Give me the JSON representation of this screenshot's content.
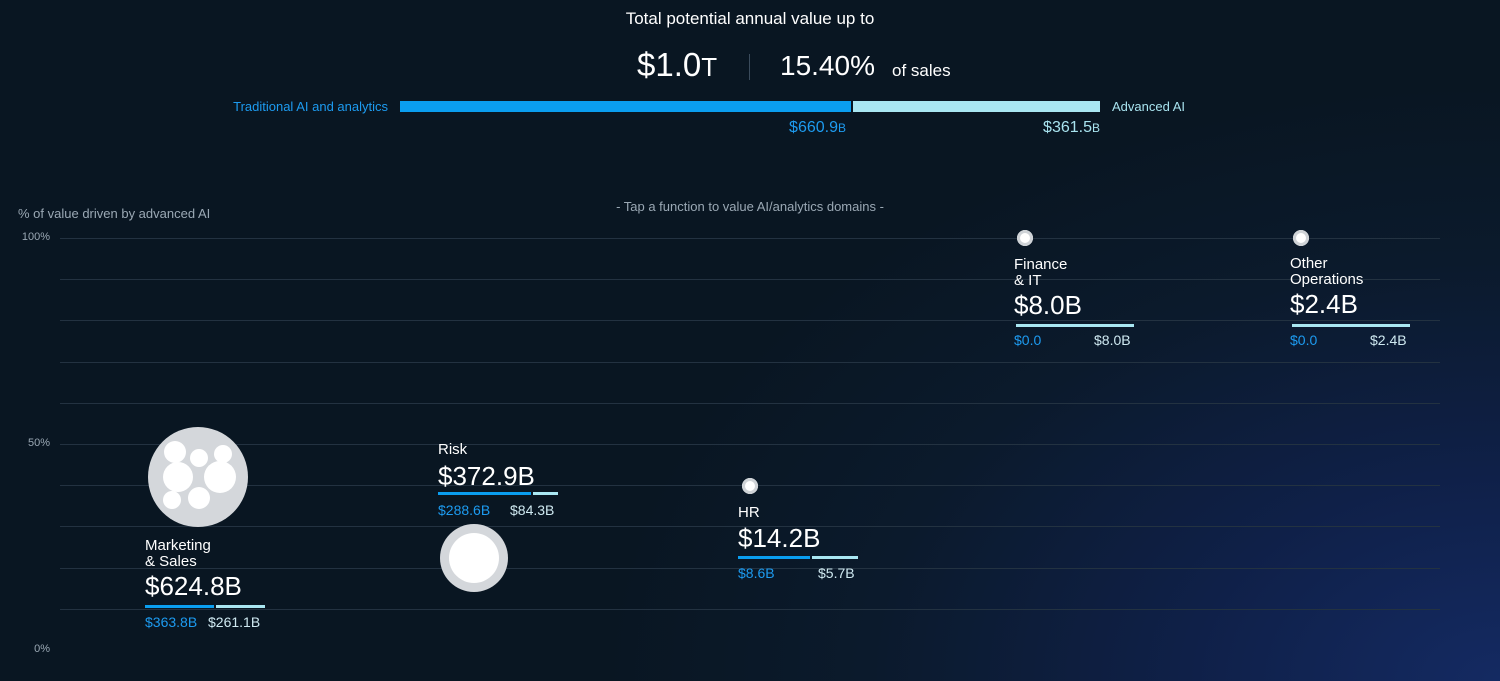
{
  "header": {
    "title": "Total potential annual value up to",
    "total_value": "$1.0",
    "total_unit": "T",
    "pct_value": "15.40%",
    "pct_suffix": "of sales",
    "traditional_label": "Traditional AI and analytics",
    "advanced_label": "Advanced AI",
    "traditional_amount": "$660.9",
    "advanced_amount": "$361.5",
    "amount_unit": "B",
    "traditional_fraction": 0.646
  },
  "instruction": "- Tap a function to value AI/analytics domains -",
  "colors": {
    "traditional": "#0a9ef0",
    "advanced": "#a9e7f2",
    "background": "#0b1a2c"
  },
  "chart_data": {
    "type": "scatter",
    "ylabel": "% of value driven by advanced AI",
    "yticks": [
      "0%",
      "50%",
      "100%"
    ],
    "ylim": [
      0,
      100
    ],
    "grid": true,
    "points": [
      {
        "name_line1": "Marketing",
        "name_line2": "& Sales",
        "total": "$624.8B",
        "total_value": 624.8,
        "traditional": "$363.8B",
        "traditional_value": 363.8,
        "advanced": "$261.1B",
        "advanced_value": 261.1,
        "y": 42
      },
      {
        "name_line1": "Risk",
        "name_line2": "",
        "total": "$372.9B",
        "total_value": 372.9,
        "traditional": "$288.6B",
        "traditional_value": 288.6,
        "advanced": "$84.3B",
        "advanced_value": 84.3,
        "y": 22.6
      },
      {
        "name_line1": "HR",
        "name_line2": "",
        "total": "$14.2B",
        "total_value": 14.2,
        "traditional": "$8.6B",
        "traditional_value": 8.6,
        "advanced": "$5.7B",
        "advanced_value": 5.7,
        "y": 40
      },
      {
        "name_line1": "Finance",
        "name_line2": "& IT",
        "total": "$8.0B",
        "total_value": 8.0,
        "traditional": "$0.0",
        "traditional_value": 0.0,
        "advanced": "$8.0B",
        "advanced_value": 8.0,
        "y": 100
      },
      {
        "name_line1": "Other",
        "name_line2": "Operations",
        "total": "$2.4B",
        "total_value": 2.4,
        "traditional": "$0.0",
        "traditional_value": 0.0,
        "advanced": "$2.4B",
        "advanced_value": 2.4,
        "y": 100
      }
    ]
  }
}
